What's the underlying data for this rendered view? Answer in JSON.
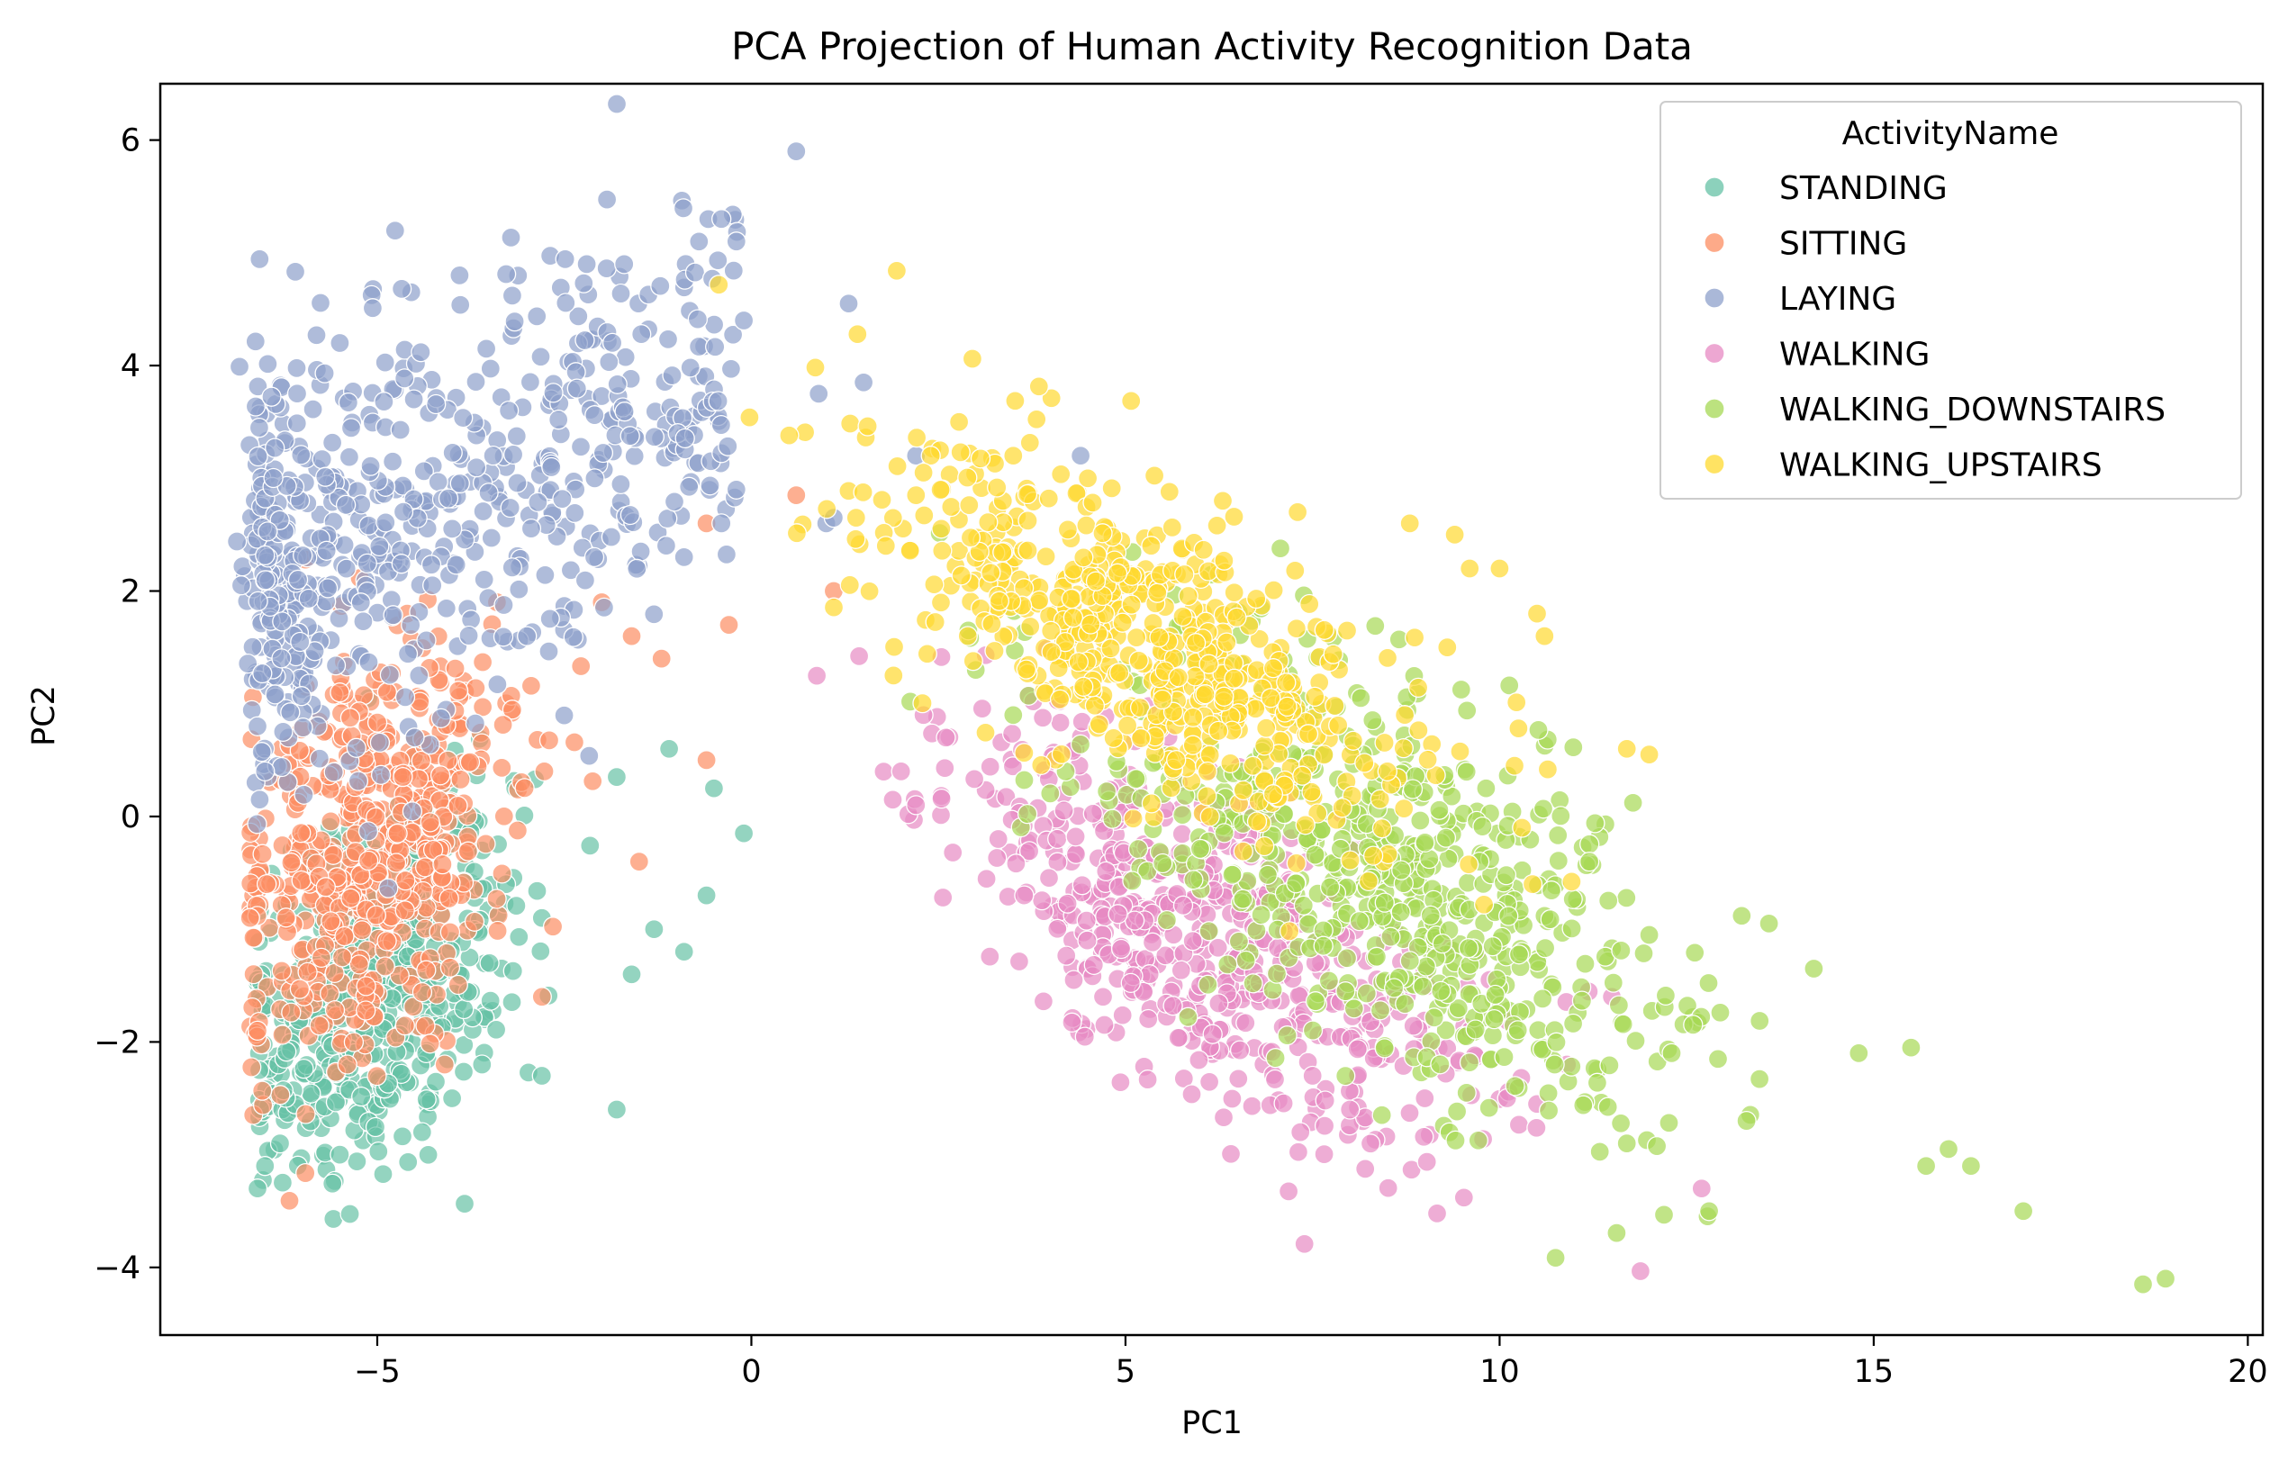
{
  "chart_data": {
    "type": "scatter",
    "title": "PCA Projection of Human Activity Recognition Data",
    "xlabel": "PC1",
    "ylabel": "PC2",
    "xlim": [
      -7.9,
      20.2
    ],
    "ylim": [
      -4.6,
      6.5
    ],
    "x_ticks": [
      -5,
      0,
      5,
      10,
      15,
      20
    ],
    "x_tick_labels": [
      "−5",
      "0",
      "5",
      "10",
      "15",
      "20"
    ],
    "y_ticks": [
      -4,
      -2,
      0,
      2,
      4,
      6
    ],
    "y_tick_labels": [
      "−4",
      "−2",
      "0",
      "2",
      "4",
      "6"
    ],
    "grid": false,
    "legend": {
      "title": "ActivityName",
      "placement": "top-right"
    },
    "series": [
      {
        "name": "STANDING",
        "color": "#66c2a5",
        "seed": 11,
        "count": 520,
        "center": [
          -5.0,
          -1.5
        ],
        "spread": [
          0.9,
          0.75
        ],
        "points": [
          [
            -6.6,
            -3.3
          ],
          [
            -6.5,
            -3.1
          ],
          [
            -6.3,
            -2.9
          ],
          [
            -5.3,
            -2.1
          ],
          [
            -4.0,
            -2.5
          ],
          [
            -3.6,
            -2.2
          ],
          [
            -2.8,
            -2.3
          ],
          [
            -1.8,
            -2.6
          ],
          [
            -1.6,
            -1.4
          ],
          [
            -1.3,
            -1.0
          ],
          [
            -0.9,
            -1.2
          ],
          [
            -0.6,
            -0.7
          ],
          [
            -0.1,
            -0.15
          ],
          [
            -0.5,
            0.25
          ],
          [
            -1.1,
            0.6
          ],
          [
            -1.8,
            0.35
          ],
          [
            -2.8,
            -0.9
          ],
          [
            -3.5,
            -1.3
          ],
          [
            -4.4,
            -2.8
          ],
          [
            -5.5,
            -3.0
          ]
        ]
      },
      {
        "name": "SITTING",
        "color": "#fc8d62",
        "seed": 22,
        "count": 560,
        "center": [
          -5.1,
          -0.3
        ],
        "spread": [
          0.95,
          0.85
        ],
        "points": [
          [
            -6.6,
            -1.9
          ],
          [
            -6.7,
            -0.9
          ],
          [
            -6.2,
            0.3
          ],
          [
            -5.5,
            1.1
          ],
          [
            -4.6,
            1.8
          ],
          [
            -3.4,
            1.9
          ],
          [
            -2.0,
            1.9
          ],
          [
            -1.6,
            1.6
          ],
          [
            -1.2,
            1.4
          ],
          [
            -0.6,
            2.6
          ],
          [
            -0.3,
            1.7
          ],
          [
            0.6,
            2.85
          ],
          [
            1.1,
            2.0
          ],
          [
            -0.6,
            0.5
          ],
          [
            -1.5,
            -0.4
          ],
          [
            -2.8,
            -1.6
          ],
          [
            -4.1,
            -2.2
          ],
          [
            -5.4,
            -2.2
          ]
        ]
      },
      {
        "name": "LAYING",
        "color": "#8da0cb",
        "seed": 33,
        "count": 640,
        "center": [
          -5.1,
          2.5
        ],
        "spread": [
          0.8,
          0.95
        ],
        "points": [
          [
            0.6,
            5.9
          ],
          [
            -0.4,
            5.3
          ],
          [
            -0.2,
            5.1
          ],
          [
            -0.7,
            5.1
          ],
          [
            -2.2,
            4.9
          ],
          [
            -3.9,
            4.8
          ],
          [
            -1.7,
            4.9
          ],
          [
            1.3,
            4.55
          ],
          [
            -0.1,
            4.4
          ],
          [
            1.5,
            3.85
          ],
          [
            0.9,
            3.75
          ],
          [
            4.4,
            3.2
          ],
          [
            2.2,
            3.2
          ],
          [
            -0.2,
            2.9
          ],
          [
            -0.4,
            2.6
          ],
          [
            1.0,
            2.6
          ],
          [
            1.1,
            2.65
          ],
          [
            -0.9,
            2.3
          ],
          [
            -2.1,
            2.3
          ],
          [
            -3.0,
            1.6
          ],
          [
            -6.6,
            0.8
          ],
          [
            -6.5,
            0.4
          ],
          [
            -4.5,
            0.7
          ],
          [
            -5.5,
            4.2
          ]
        ]
      },
      {
        "name": "WALKING",
        "color": "#e78ac3",
        "seed": 44,
        "count": 560,
        "center": [
          6.0,
          -1.1
        ],
        "spread": [
          1.8,
          0.7
        ],
        "points": [
          [
            2.0,
            0.4
          ],
          [
            2.3,
            0.9
          ],
          [
            2.6,
            0.7
          ],
          [
            2.2,
            0.1
          ],
          [
            3.3,
            -0.2
          ],
          [
            4.7,
            -1.6
          ],
          [
            6.0,
            -1.5
          ],
          [
            8.0,
            -2.6
          ],
          [
            9.0,
            -2.5
          ],
          [
            10.1,
            -2.5
          ],
          [
            10.5,
            -2.55
          ],
          [
            10.9,
            -2.2
          ],
          [
            11.5,
            -1.6
          ],
          [
            12.7,
            -3.3
          ],
          [
            7.5,
            -2.3
          ],
          [
            9.7,
            -1.2
          ]
        ]
      },
      {
        "name": "WALKING_DOWNSTAIRS",
        "color": "#a6d854",
        "seed": 55,
        "count": 620,
        "center": [
          8.5,
          -0.6
        ],
        "spread": [
          2.0,
          0.85
        ],
        "points": [
          [
            2.9,
            1.65
          ],
          [
            3.0,
            1.3
          ],
          [
            3.5,
            0.9
          ],
          [
            4.2,
            0.4
          ],
          [
            5.5,
            0.2
          ],
          [
            12.8,
            -3.5
          ],
          [
            13.6,
            -0.95
          ],
          [
            14.2,
            -1.35
          ],
          [
            14.8,
            -2.1
          ],
          [
            15.5,
            -2.05
          ],
          [
            15.7,
            -3.1
          ],
          [
            16.0,
            -2.95
          ],
          [
            16.3,
            -3.1
          ],
          [
            17.0,
            -3.5
          ],
          [
            18.6,
            -4.15
          ],
          [
            18.9,
            -4.1
          ],
          [
            12.3,
            -2.1
          ],
          [
            11.7,
            -2.9
          ],
          [
            13.3,
            -2.7
          ],
          [
            11.2,
            -0.4
          ],
          [
            12.0,
            -1.05
          ]
        ]
      },
      {
        "name": "WALKING_UPSTAIRS",
        "color": "#ffd92f",
        "seed": 66,
        "count": 600,
        "center": [
          5.3,
          1.55
        ],
        "spread": [
          1.7,
          0.6
        ],
        "points": [
          [
            2.2,
            2.85
          ],
          [
            2.3,
            3.05
          ],
          [
            1.4,
            2.65
          ],
          [
            1.9,
            1.25
          ],
          [
            3.5,
            3.2
          ],
          [
            6.3,
            2.8
          ],
          [
            7.3,
            2.7
          ],
          [
            8.8,
            2.6
          ],
          [
            9.4,
            2.5
          ],
          [
            9.6,
            2.2
          ],
          [
            10.0,
            2.2
          ],
          [
            10.5,
            1.8
          ],
          [
            10.6,
            1.6
          ],
          [
            9.3,
            1.5
          ],
          [
            10.2,
            0.45
          ],
          [
            11.7,
            0.6
          ],
          [
            12.0,
            0.55
          ],
          [
            10.3,
            -0.1
          ],
          [
            8.5,
            0.4
          ]
        ]
      }
    ]
  }
}
